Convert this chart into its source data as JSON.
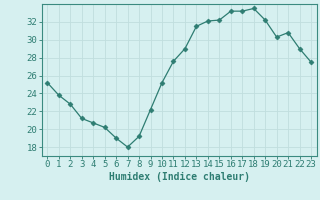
{
  "x": [
    0,
    1,
    2,
    3,
    4,
    5,
    6,
    7,
    8,
    9,
    10,
    11,
    12,
    13,
    14,
    15,
    16,
    17,
    18,
    19,
    20,
    21,
    22,
    23
  ],
  "y": [
    25.2,
    23.8,
    22.8,
    21.2,
    20.7,
    20.2,
    19.0,
    18.0,
    19.2,
    22.2,
    25.2,
    27.6,
    29.0,
    31.5,
    32.1,
    32.2,
    33.2,
    33.2,
    33.5,
    32.2,
    30.3,
    30.8,
    29.0,
    27.5
  ],
  "line_color": "#2e7d72",
  "marker": "D",
  "markersize": 2.5,
  "bg_color": "#d6f0f0",
  "grid_color": "#c0dede",
  "axis_color": "#3a8a80",
  "tick_color": "#2e7d72",
  "xlabel": "Humidex (Indice chaleur)",
  "ylim": [
    17,
    34
  ],
  "yticks": [
    18,
    20,
    22,
    24,
    26,
    28,
    30,
    32
  ],
  "xticks": [
    0,
    1,
    2,
    3,
    4,
    5,
    6,
    7,
    8,
    9,
    10,
    11,
    12,
    13,
    14,
    15,
    16,
    17,
    18,
    19,
    20,
    21,
    22,
    23
  ],
  "font_color": "#2e7d72",
  "xlabel_fontsize": 7.0,
  "tick_fontsize": 6.5
}
